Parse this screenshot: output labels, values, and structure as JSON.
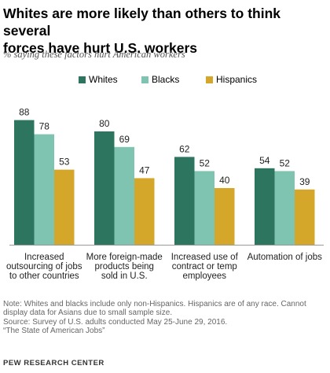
{
  "title_line1": "Whites are more likely than others to think several",
  "title_line2": "forces have hurt U.S. workers",
  "subtitle": "% saying these factors hurt American workers",
  "notes": {
    "line1": "Note: Whites and blacks include only non-Hispanics. Hispanics are of any race. Cannot",
    "line2": "display data for Asians due to small sample size.",
    "line3": "Source: Survey of U.S. adults conducted May 25-June 29, 2016.",
    "line4": "“The State of American Jobs”"
  },
  "brand": "PEW RESEARCH CENTER",
  "chart_data": {
    "type": "bar",
    "categories": [
      [
        "Increased",
        "outsourcing of jobs",
        "to other countries"
      ],
      [
        "More foreign-made",
        "products being",
        "sold in U.S."
      ],
      [
        "Increased use of",
        "contract or temp",
        "employees"
      ],
      [
        "Automation of jobs"
      ]
    ],
    "series": [
      {
        "name": "Whites",
        "color": "#2e7560",
        "values": [
          88,
          80,
          62,
          54
        ]
      },
      {
        "name": "Blacks",
        "color": "#7fc4b0",
        "values": [
          78,
          69,
          52,
          52
        ]
      },
      {
        "name": "Hispanics",
        "color": "#d4a62a",
        "values": [
          53,
          47,
          40,
          39
        ]
      }
    ],
    "ylim": [
      0,
      100
    ],
    "grid": false,
    "legend_position": "top"
  }
}
